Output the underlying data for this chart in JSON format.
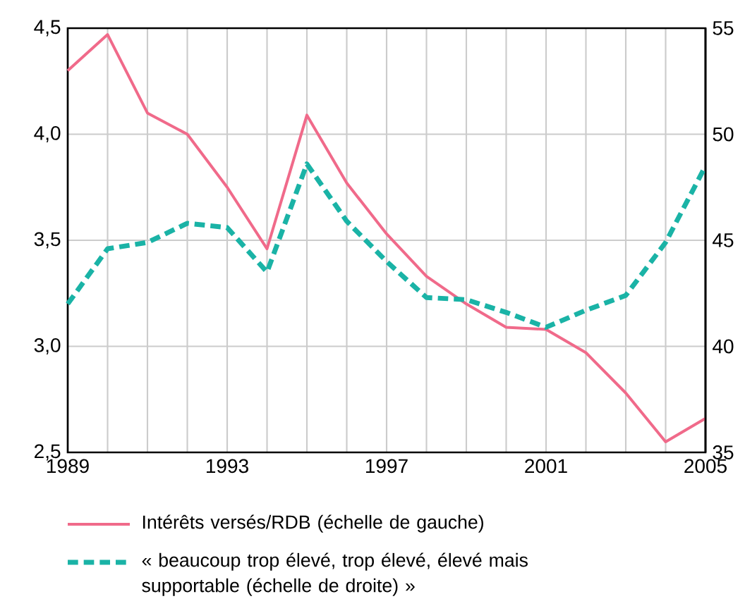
{
  "chart_data": {
    "type": "line",
    "x": [
      1989,
      1990,
      1991,
      1992,
      1993,
      1994,
      1995,
      1996,
      1997,
      1998,
      1999,
      2000,
      2001,
      2002,
      2003,
      2004,
      2005
    ],
    "series": [
      {
        "name": "Intérêts versés/RDB (échelle de gauche)",
        "color": "#f06a8a",
        "line_style": "solid",
        "values": [
          4.3,
          4.47,
          4.1,
          4.0,
          3.75,
          3.46,
          4.09,
          3.77,
          3.53,
          3.33,
          3.2,
          3.09,
          3.08,
          2.97,
          2.78,
          2.55,
          2.66
        ]
      },
      {
        "name": "« beaucoup trop élevé, trop élevé, élevé mais supportable (échelle de droite) »",
        "color": "#1ab3a6",
        "line_style": "dashed",
        "axis": "y2",
        "values": [
          42.0,
          44.6,
          44.9,
          45.8,
          45.6,
          43.5,
          48.6,
          45.9,
          44.0,
          42.3,
          42.2,
          41.6,
          40.9,
          41.7,
          42.4,
          44.9,
          48.5
        ]
      }
    ],
    "xlim": [
      1989,
      2005
    ],
    "xticks": [
      1989,
      {
        "value": 1990,
        "label": null
      },
      {
        "value": 1991,
        "label": null
      },
      {
        "value": 1992,
        "label": null
      },
      1993,
      {
        "value": 1994,
        "label": null
      },
      {
        "value": 1995,
        "label": null
      },
      {
        "value": 1996,
        "label": null
      },
      1997,
      {
        "value": 1998,
        "label": null
      },
      {
        "value": 1999,
        "label": null
      },
      {
        "value": 2000,
        "label": null
      },
      2001,
      {
        "value": 2002,
        "label": null
      },
      {
        "value": 2003,
        "label": null
      },
      {
        "value": 2004,
        "label": null
      },
      2005
    ],
    "ylim": [
      2.5,
      4.5
    ],
    "yticks": [
      {
        "value": 2.5,
        "label": "2,5"
      },
      {
        "value": 3.0,
        "label": "3,0"
      },
      {
        "value": 3.5,
        "label": "3,5"
      },
      {
        "value": 4.0,
        "label": "4,0"
      },
      {
        "value": 4.5,
        "label": "4,5"
      }
    ],
    "y2lim": [
      35,
      55
    ],
    "y2ticks": [
      35,
      40,
      45,
      50,
      55
    ],
    "grid": true,
    "legend": "bottom"
  }
}
